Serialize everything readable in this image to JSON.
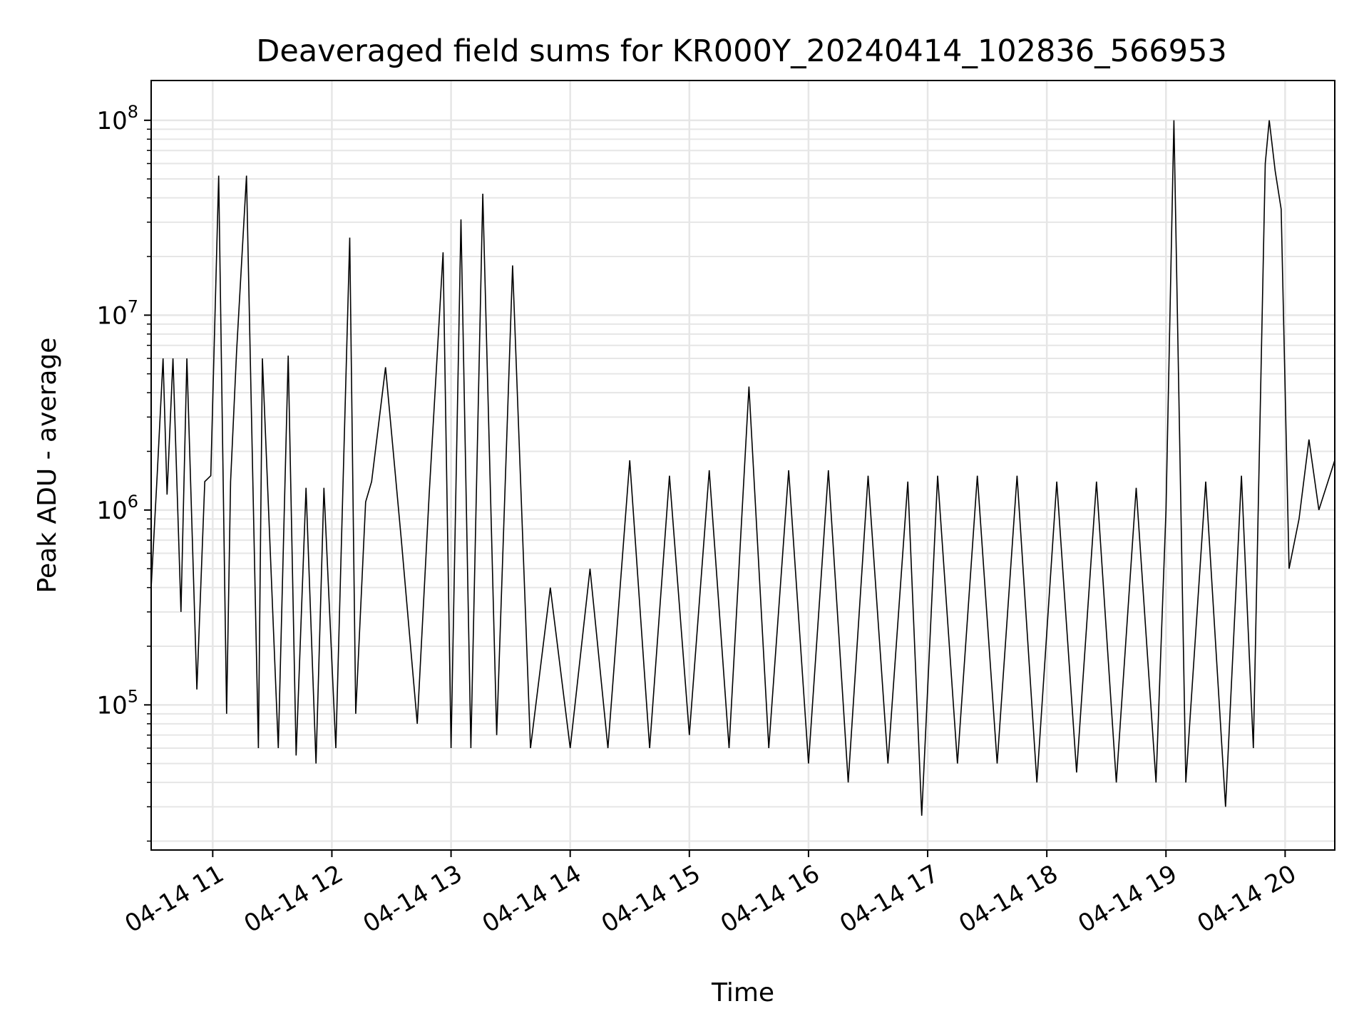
{
  "chart_data": {
    "type": "line",
    "title": "Deaveraged field sums for KR000Y_20240414_102836_566953",
    "xlabel": "Time",
    "ylabel": "Peak ADU - average",
    "x_scale": "time",
    "y_scale": "log",
    "xlim": [
      "2024-04-14T10:29:00",
      "2024-04-14T20:25:00"
    ],
    "ylim": [
      18000,
      160000000
    ],
    "grid": true,
    "legend": "none",
    "series_color": "#000000",
    "grid_color": "#e6e6e6",
    "x_ticks": [
      {
        "t": "2024-04-14T11:00:00",
        "label": "04-14 11"
      },
      {
        "t": "2024-04-14T12:00:00",
        "label": "04-14 12"
      },
      {
        "t": "2024-04-14T13:00:00",
        "label": "04-14 13"
      },
      {
        "t": "2024-04-14T14:00:00",
        "label": "04-14 14"
      },
      {
        "t": "2024-04-14T15:00:00",
        "label": "04-14 15"
      },
      {
        "t": "2024-04-14T16:00:00",
        "label": "04-14 16"
      },
      {
        "t": "2024-04-14T17:00:00",
        "label": "04-14 17"
      },
      {
        "t": "2024-04-14T18:00:00",
        "label": "04-14 18"
      },
      {
        "t": "2024-04-14T19:00:00",
        "label": "04-14 19"
      },
      {
        "t": "2024-04-14T20:00:00",
        "label": "04-14 20"
      }
    ],
    "y_ticks": [
      {
        "value": 100000,
        "base": "10",
        "exp": "5"
      },
      {
        "value": 1000000,
        "base": "10",
        "exp": "6"
      },
      {
        "value": 10000000,
        "base": "10",
        "exp": "7"
      },
      {
        "value": 100000000,
        "base": "10",
        "exp": "8"
      }
    ],
    "series": [
      {
        "x": [
          "2024-04-14T10:29:00",
          "2024-04-14T10:32:00",
          "2024-04-14T10:35:00",
          "2024-04-14T10:37:00",
          "2024-04-14T10:40:00",
          "2024-04-14T10:44:00",
          "2024-04-14T10:47:00",
          "2024-04-14T10:52:00",
          "2024-04-14T10:56:00",
          "2024-04-14T10:59:00",
          "2024-04-14T11:03:00",
          "2024-04-14T11:07:00",
          "2024-04-14T11:09:00",
          "2024-04-14T11:12:00",
          "2024-04-14T11:17:00",
          "2024-04-14T11:23:00",
          "2024-04-14T11:25:00",
          "2024-04-14T11:33:00",
          "2024-04-14T11:38:00",
          "2024-04-14T11:42:00",
          "2024-04-14T11:47:00",
          "2024-04-14T11:52:00",
          "2024-04-14T11:56:00",
          "2024-04-14T12:02:00",
          "2024-04-14T12:09:00",
          "2024-04-14T12:12:00",
          "2024-04-14T12:17:00",
          "2024-04-14T12:20:00",
          "2024-04-14T12:27:00",
          "2024-04-14T12:35:00",
          "2024-04-14T12:43:00",
          "2024-04-14T12:49:00",
          "2024-04-14T12:56:00",
          "2024-04-14T13:00:00",
          "2024-04-14T13:05:00",
          "2024-04-14T13:10:00",
          "2024-04-14T13:16:00",
          "2024-04-14T13:23:00",
          "2024-04-14T13:31:00",
          "2024-04-14T13:40:00",
          "2024-04-14T13:50:00",
          "2024-04-14T14:00:00",
          "2024-04-14T14:10:00",
          "2024-04-14T14:19:00",
          "2024-04-14T14:30:00",
          "2024-04-14T14:40:00",
          "2024-04-14T14:50:00",
          "2024-04-14T15:00:00",
          "2024-04-14T15:10:00",
          "2024-04-14T15:20:00",
          "2024-04-14T15:30:00",
          "2024-04-14T15:40:00",
          "2024-04-14T15:50:00",
          "2024-04-14T16:00:00",
          "2024-04-14T16:10:00",
          "2024-04-14T16:20:00",
          "2024-04-14T16:30:00",
          "2024-04-14T16:40:00",
          "2024-04-14T16:50:00",
          "2024-04-14T16:57:00",
          "2024-04-14T17:05:00",
          "2024-04-14T17:15:00",
          "2024-04-14T17:25:00",
          "2024-04-14T17:35:00",
          "2024-04-14T17:45:00",
          "2024-04-14T17:55:00",
          "2024-04-14T18:05:00",
          "2024-04-14T18:15:00",
          "2024-04-14T18:25:00",
          "2024-04-14T18:35:00",
          "2024-04-14T18:45:00",
          "2024-04-14T18:55:00",
          "2024-04-14T19:00:00",
          "2024-04-14T19:04:00",
          "2024-04-14T19:10:00",
          "2024-04-14T19:20:00",
          "2024-04-14T19:30:00",
          "2024-04-14T19:38:00",
          "2024-04-14T19:44:00",
          "2024-04-14T19:50:00",
          "2024-04-14T19:52:00",
          "2024-04-14T19:55:00",
          "2024-04-14T19:58:00",
          "2024-04-14T20:02:00",
          "2024-04-14T20:07:00",
          "2024-04-14T20:12:00",
          "2024-04-14T20:17:00",
          "2024-04-14T20:25:00"
        ],
        "y": [
          400000,
          1500000,
          6000000,
          1200000,
          6000000,
          300000,
          6000000,
          120000,
          1400000,
          1500000,
          52000000,
          90000,
          1400000,
          6500000,
          52000000,
          60000,
          6000000,
          60000,
          6200000,
          55000,
          1300000,
          50000,
          1300000,
          60000,
          25000000,
          90000,
          1100000,
          1400000,
          5400000,
          700000,
          80000,
          1200000,
          21000000,
          60000,
          31000000,
          60000,
          42000000,
          70000,
          18000000,
          60000,
          400000,
          60000,
          500000,
          60000,
          1800000,
          60000,
          1500000,
          70000,
          1600000,
          60000,
          4300000,
          60000,
          1600000,
          50000,
          1600000,
          40000,
          1500000,
          50000,
          1400000,
          27000,
          1500000,
          50000,
          1500000,
          50000,
          1500000,
          40000,
          1400000,
          45000,
          1400000,
          40000,
          1300000,
          40000,
          1000000,
          100000000,
          40000,
          1400000,
          30000,
          1500000,
          60000,
          60000000,
          100000000,
          55000000,
          35000000,
          500000,
          900000,
          2300000,
          1000000,
          1800000
        ]
      }
    ]
  }
}
